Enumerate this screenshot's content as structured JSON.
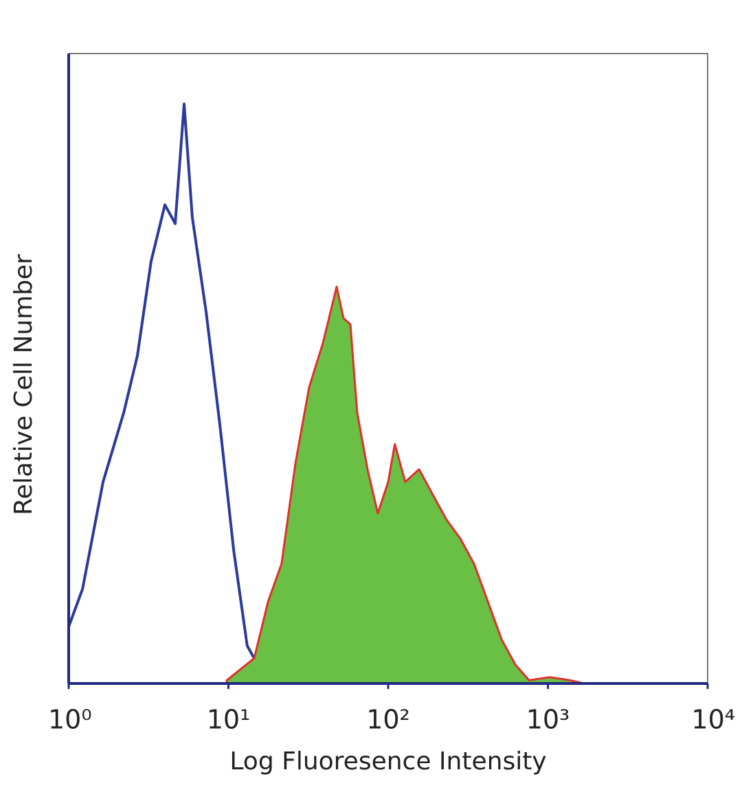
{
  "chart_data": {
    "type": "histogram-overlay",
    "x_label": "Log Fluoresence Intensity",
    "y_label": "Relative Cell Number",
    "log_x": true,
    "xlim": [
      1,
      10000
    ],
    "ylim": [
      0,
      100
    ],
    "xticks": [
      {
        "value": 1,
        "label": "10⁰"
      },
      {
        "value": 10,
        "label": "10¹"
      },
      {
        "value": 100,
        "label": "10²"
      },
      {
        "value": 1000,
        "label": "10³"
      },
      {
        "value": 10000,
        "label": "10⁴"
      }
    ],
    "series": [
      {
        "color": "#2b3a9c",
        "filled": false,
        "x": [
          1,
          1.22,
          1.64,
          2.21,
          2.69,
          3.28,
          4.0,
          4.64,
          5.28,
          5.94,
          7.25,
          8.84,
          10.8,
          13.1,
          16.0,
          19.5
        ],
        "values": [
          9,
          15,
          32,
          43,
          52,
          67,
          76,
          73,
          92,
          74,
          59,
          41,
          21,
          6,
          2,
          0
        ]
      },
      {
        "color": "#6abf45",
        "edge_color": "#e0302c",
        "filled": true,
        "x": [
          9.76,
          14.5,
          17.7,
          21.5,
          26.3,
          32.0,
          39.0,
          47.6,
          52.5,
          58.0,
          64.0,
          74.3,
          86.1,
          100,
          110,
          128,
          156,
          190,
          232,
          283,
          345,
          421,
          513,
          625,
          762,
          1025,
          1380,
          1683
        ],
        "values": [
          0.5,
          4,
          13,
          19,
          35,
          47,
          54,
          63,
          58,
          57,
          43,
          34,
          27,
          32,
          38,
          32,
          34,
          30,
          26,
          23,
          19,
          13,
          7,
          3,
          0.5,
          1,
          0.5,
          0
        ]
      }
    ]
  }
}
